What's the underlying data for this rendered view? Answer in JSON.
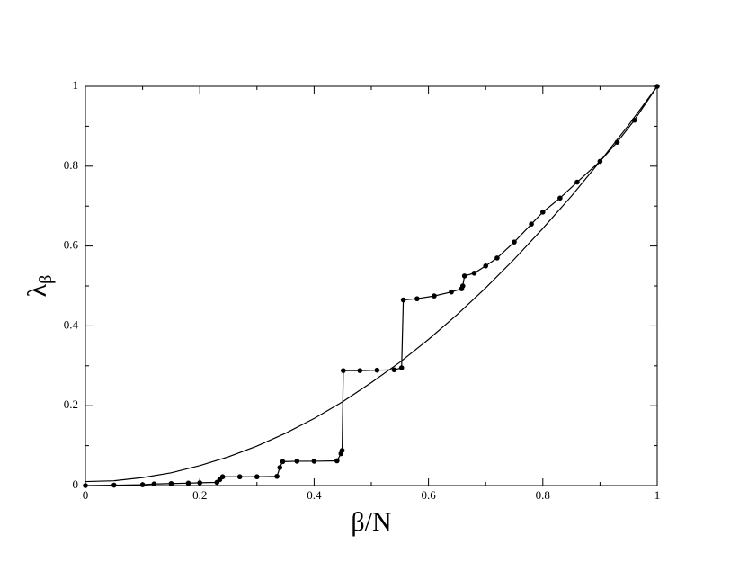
{
  "chart_data": {
    "type": "line",
    "xlabel": "β/N",
    "ylabel": "λ",
    "ylabel_sub": "β",
    "xlim": [
      0,
      1
    ],
    "ylim": [
      0,
      1
    ],
    "xticks": [
      0,
      0.2,
      0.4,
      0.6,
      0.8,
      1
    ],
    "yticks": [
      0,
      0.2,
      0.4,
      0.6,
      0.8,
      1
    ],
    "xminor": [
      0.1,
      0.3,
      0.5,
      0.7,
      0.9
    ],
    "yminor": [
      0.1,
      0.3,
      0.5,
      0.7,
      0.9
    ],
    "grid": false,
    "series": [
      {
        "color": "#000000",
        "markers": false,
        "x": [
          0,
          0.05,
          0.1,
          0.15,
          0.2,
          0.25,
          0.3,
          0.35,
          0.4,
          0.45,
          0.5,
          0.55,
          0.6,
          0.65,
          0.7,
          0.75,
          0.8,
          0.85,
          0.9,
          0.95,
          1
        ],
        "values": [
          0.01,
          0.012,
          0.02,
          0.032,
          0.05,
          0.072,
          0.099,
          0.131,
          0.168,
          0.21,
          0.258,
          0.309,
          0.366,
          0.428,
          0.495,
          0.567,
          0.644,
          0.725,
          0.812,
          0.903,
          1
        ]
      },
      {
        "color": "#000000",
        "markers": true,
        "x": [
          0,
          0.05,
          0.1,
          0.12,
          0.15,
          0.18,
          0.2,
          0.23,
          0.235,
          0.24,
          0.27,
          0.3,
          0.335,
          0.34,
          0.345,
          0.37,
          0.4,
          0.44,
          0.447,
          0.449,
          0.451,
          0.48,
          0.51,
          0.54,
          0.553,
          0.556,
          0.58,
          0.61,
          0.64,
          0.658,
          0.66,
          0.663,
          0.68,
          0.7,
          0.72,
          0.75,
          0.78,
          0.8,
          0.83,
          0.86,
          0.9,
          0.93,
          0.96,
          1
        ],
        "values": [
          0,
          0.001,
          0.002,
          0.004,
          0.005,
          0.006,
          0.007,
          0.008,
          0.015,
          0.022,
          0.022,
          0.022,
          0.023,
          0.045,
          0.06,
          0.061,
          0.061,
          0.062,
          0.08,
          0.088,
          0.288,
          0.288,
          0.289,
          0.29,
          0.295,
          0.465,
          0.468,
          0.475,
          0.485,
          0.493,
          0.5,
          0.525,
          0.532,
          0.55,
          0.57,
          0.61,
          0.655,
          0.685,
          0.72,
          0.76,
          0.812,
          0.86,
          0.915,
          1
        ]
      }
    ]
  }
}
